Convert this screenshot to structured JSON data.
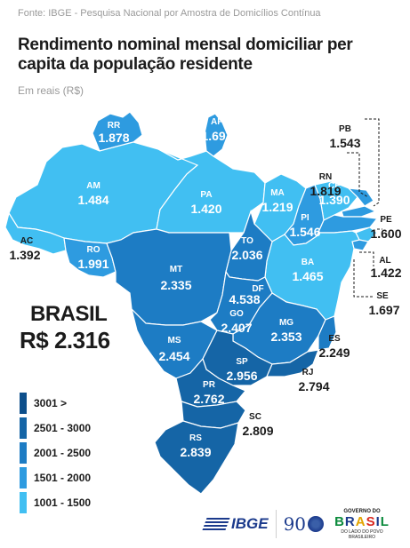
{
  "source": "Fonte: IBGE - Pesquisa Nacional por Amostra de Domicílios Contínua",
  "title": "Rendimento nominal mensal domiciliar per capita da população residente",
  "subtitle": "Em reais (R$)",
  "brasil": {
    "label": "BRASIL",
    "value": "R$ 2.316"
  },
  "legend": [
    {
      "label": "3001 >",
      "color": "#0d4f8b"
    },
    {
      "label": "2501 - 3000",
      "color": "#1565a6"
    },
    {
      "label": "2001 - 2500",
      "color": "#1d7cc4"
    },
    {
      "label": "1501 - 2000",
      "color": "#2e9be0"
    },
    {
      "label": "1001 - 1500",
      "color": "#41bff2"
    }
  ],
  "states": [
    {
      "code": "RR",
      "value": "1.878"
    },
    {
      "code": "AP",
      "value": "1.697"
    },
    {
      "code": "AM",
      "value": "1.484"
    },
    {
      "code": "PA",
      "value": "1.420"
    },
    {
      "code": "MA",
      "value": "1.219"
    },
    {
      "code": "CE",
      "value": "1.390"
    },
    {
      "code": "PI",
      "value": "1.546"
    },
    {
      "code": "RN",
      "value": "1.819"
    },
    {
      "code": "PB",
      "value": "1.543"
    },
    {
      "code": "PE",
      "value": "1.600"
    },
    {
      "code": "AL",
      "value": "1.422"
    },
    {
      "code": "SE",
      "value": "1.697"
    },
    {
      "code": "BA",
      "value": "1.465"
    },
    {
      "code": "AC",
      "value": "1.392"
    },
    {
      "code": "RO",
      "value": "1.991"
    },
    {
      "code": "TO",
      "value": "2.036"
    },
    {
      "code": "MT",
      "value": "2.335"
    },
    {
      "code": "DF",
      "value": "4.538"
    },
    {
      "code": "GO",
      "value": "2.407"
    },
    {
      "code": "MG",
      "value": "2.353"
    },
    {
      "code": "MS",
      "value": "2.454"
    },
    {
      "code": "ES",
      "value": "2.249"
    },
    {
      "code": "SP",
      "value": "2.956"
    },
    {
      "code": "RJ",
      "value": "2.794"
    },
    {
      "code": "PR",
      "value": "2.762"
    },
    {
      "code": "SC",
      "value": "2.809"
    },
    {
      "code": "RS",
      "value": "2.839"
    }
  ],
  "footer": {
    "ibge": "IBGE",
    "ninety": "90",
    "gov_top": "GOVERNO DO",
    "gov_letters": [
      "B",
      "R",
      "A",
      "S",
      "I",
      "L"
    ],
    "gov_bottom": "DO LADO DO POVO BRASILEIRO"
  }
}
